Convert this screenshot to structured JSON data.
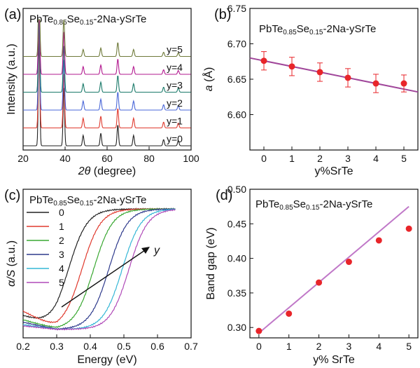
{
  "chart_data": [
    {
      "panel": "(a)",
      "type": "line",
      "title": "PbTe0.85Se0.15-2Na-ySrTe",
      "title_parts": {
        "base": "PbTe",
        "sub1": "0.85",
        "mid": "Se",
        "sub2": "0.15",
        "rest": "-2Na-ySrTe"
      },
      "xlabel_symbol": "2θ",
      "xlabel_rest": " (degree)",
      "ylabel": "Intensity (a.u.)",
      "xlim": [
        20,
        100
      ],
      "xticks": [
        "20",
        "40",
        "60",
        "80",
        "100"
      ],
      "peaks_2theta": [
        27.6,
        39.4,
        48.6,
        57.0,
        65.1,
        72.6,
        86.9,
        93.9
      ],
      "peak_heights": [
        1.0,
        0.55,
        0.1,
        0.12,
        0.2,
        0.1,
        0.06,
        0.05
      ],
      "series": [
        {
          "name": "y=0",
          "color": "#222222"
        },
        {
          "name": "y=1",
          "color": "#e03a2e"
        },
        {
          "name": "y=2",
          "color": "#4a67d8"
        },
        {
          "name": "y=3",
          "color": "#1a7a6a"
        },
        {
          "name": "y=4",
          "color": "#b2188f"
        },
        {
          "name": "y=5",
          "color": "#6f7a3a"
        }
      ]
    },
    {
      "panel": "(b)",
      "type": "scatter",
      "title": "PbTe0.85Se0.15-2Na-ySrTe",
      "title_parts": {
        "base": "PbTe",
        "sub1": "0.85",
        "mid": "Se",
        "sub2": "0.15",
        "rest": "-2Na-ySrTe"
      },
      "xlabel": "y%SrTe",
      "ylabel_symbol": "a",
      "ylabel_rest": " (Å)",
      "xlim": [
        -0.5,
        5.5
      ],
      "ylim": [
        6.55,
        6.75
      ],
      "xticks": [
        0,
        1,
        2,
        3,
        4,
        5
      ],
      "yticks": [
        "6.60",
        "6.65",
        "6.70",
        "6.75"
      ],
      "x": [
        0,
        1,
        2,
        3,
        4,
        5
      ],
      "y": [
        6.676,
        6.668,
        6.66,
        6.652,
        6.644,
        6.644
      ],
      "error": [
        0.013,
        0.013,
        0.013,
        0.013,
        0.013,
        0.012
      ],
      "fit": {
        "x": [
          -0.5,
          5.5
        ],
        "y": [
          6.68,
          6.632
        ]
      },
      "point_color": "#e8252a",
      "line_color": "#a0469a"
    },
    {
      "panel": "(c)",
      "type": "line",
      "title": "PbTe0.85Se0.15-2Na-ySrTe",
      "title_parts": {
        "base": "PbTe",
        "sub1": "0.85",
        "mid": "Se",
        "sub2": "0.15",
        "rest": "-2Na-ySrTe"
      },
      "xlabel": "Energy (eV)",
      "ylabel_symbol": "α/S",
      "ylabel_rest": " (a.u.)",
      "xlim": [
        0.2,
        0.7
      ],
      "xticks": [
        "0.2",
        "0.3",
        "0.4",
        "0.5",
        "0.6",
        "0.7"
      ],
      "arrow_label": "y",
      "series": [
        {
          "name": "0",
          "color": "#222222",
          "edge": 0.335,
          "base": 0.11
        },
        {
          "name": "1",
          "color": "#e03a2e",
          "edge": 0.375,
          "base": 0.15
        },
        {
          "name": "2",
          "color": "#3aa832",
          "edge": 0.41,
          "base": 0.08
        },
        {
          "name": "3",
          "color": "#2e3a8c",
          "edge": 0.455,
          "base": 0.06
        },
        {
          "name": "4",
          "color": "#35b7d6",
          "edge": 0.495,
          "base": 0.04
        },
        {
          "name": "5",
          "color": "#b04ab8",
          "edge": 0.515,
          "base": 0.03
        }
      ]
    },
    {
      "panel": "(d)",
      "type": "scatter",
      "title": "PbTe0.85Se0.15-2Na-ySrTe",
      "title_parts": {
        "base": "PbTe",
        "sub1": "0.85",
        "mid": "Se",
        "sub2": "0.15",
        "rest": "-2Na-ySrTe"
      },
      "xlabel": "y% SrTe",
      "ylabel": "Band gap (eV)",
      "xlim": [
        -0.3,
        5.3
      ],
      "ylim": [
        0.285,
        0.5
      ],
      "xticks": [
        0,
        1,
        2,
        3,
        4,
        5
      ],
      "yticks": [
        "0.30",
        "0.35",
        "0.40",
        "0.45",
        "0.50"
      ],
      "x": [
        0,
        1,
        2,
        3,
        4,
        5
      ],
      "y": [
        0.295,
        0.32,
        0.365,
        0.395,
        0.426,
        0.443
      ],
      "fit": {
        "x": [
          0,
          5
        ],
        "y": [
          0.292,
          0.475
        ]
      },
      "point_color": "#e8252a",
      "line_color": "#c078c8"
    }
  ]
}
